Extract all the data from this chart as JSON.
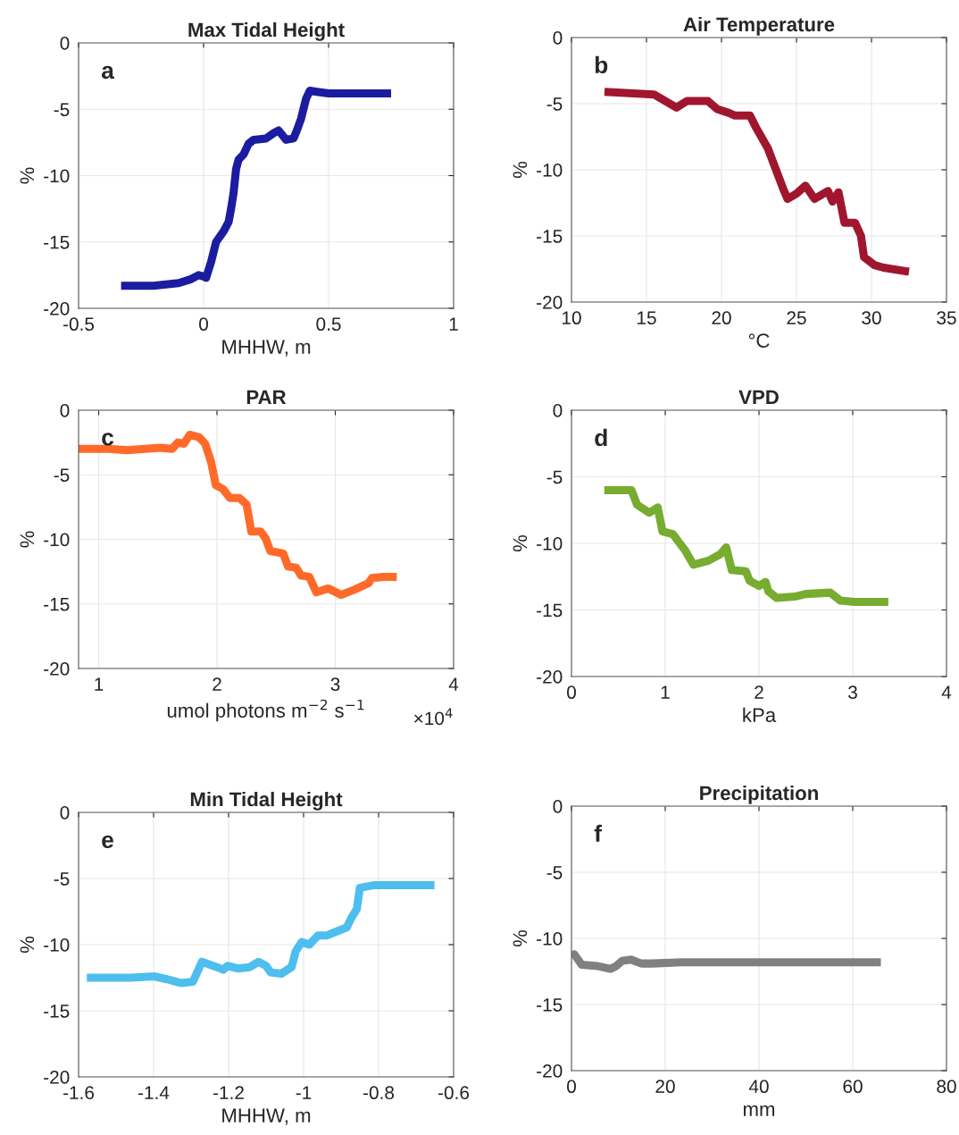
{
  "chart_data": [
    {
      "type": "line",
      "title": "Max Tidal Height",
      "xlabel": "MHHW, m",
      "ylabel": "%",
      "annotations": [
        "a"
      ],
      "grid": true,
      "xlim": [
        -0.5,
        1
      ],
      "xticks": [
        -0.5,
        0,
        0.5,
        1
      ],
      "ylim": [
        -20,
        0
      ],
      "yticks": [
        -20,
        -15,
        -10,
        -5,
        0
      ],
      "series": [
        {
          "color": "#1c1ca0",
          "x": [
            -0.33,
            -0.2,
            -0.15,
            -0.1,
            -0.05,
            -0.02,
            0.0,
            0.01,
            0.03,
            0.05,
            0.08,
            0.1,
            0.11,
            0.12,
            0.13,
            0.14,
            0.16,
            0.18,
            0.2,
            0.25,
            0.28,
            0.3,
            0.33,
            0.36,
            0.375,
            0.39,
            0.41,
            0.425,
            0.46,
            0.5,
            0.75
          ],
          "values": [
            -18.3,
            -18.3,
            -18.2,
            -18.1,
            -17.8,
            -17.5,
            -17.6,
            -17.7,
            -16.5,
            -15.0,
            -14.2,
            -13.5,
            -12.5,
            -11.3,
            -9.5,
            -8.8,
            -8.4,
            -7.6,
            -7.3,
            -7.2,
            -6.8,
            -6.6,
            -7.3,
            -7.2,
            -6.5,
            -5.7,
            -4.2,
            -3.6,
            -3.7,
            -3.8,
            -3.8
          ]
        }
      ]
    },
    {
      "type": "line",
      "title": "Air Temperature",
      "xlabel": "°C",
      "ylabel": "%",
      "annotations": [
        "b"
      ],
      "grid": true,
      "xlim": [
        10,
        35
      ],
      "xticks": [
        10,
        15,
        20,
        25,
        30,
        35
      ],
      "ylim": [
        -20,
        0
      ],
      "yticks": [
        -20,
        -15,
        -10,
        -5,
        0
      ],
      "series": [
        {
          "color": "#a0162e",
          "x": [
            12.2,
            15.5,
            17.0,
            17.7,
            19.1,
            19.7,
            20.5,
            20.9,
            21.9,
            22.3,
            23.1,
            24.1,
            24.4,
            25.0,
            25.6,
            26.2,
            27.1,
            27.4,
            27.8,
            28.2,
            28.9,
            29.3,
            29.5,
            30.2,
            30.8,
            32.5
          ],
          "values": [
            -4.1,
            -4.3,
            -5.3,
            -4.8,
            -4.8,
            -5.4,
            -5.7,
            -5.9,
            -5.9,
            -6.8,
            -8.4,
            -11.4,
            -12.2,
            -11.8,
            -11.2,
            -12.2,
            -11.6,
            -12.4,
            -11.7,
            -14.0,
            -14.0,
            -15.0,
            -16.6,
            -17.2,
            -17.4,
            -17.7
          ]
        }
      ]
    },
    {
      "type": "line",
      "title": "PAR",
      "xlabel": "umol photons m$^{−2}$ s$^{−1}$",
      "ylabel": "%",
      "annotations": [
        "c",
        "×10$^{4}$"
      ],
      "grid": true,
      "xlim": [
        0.83,
        4
      ],
      "xticks": [
        1,
        2,
        3,
        4
      ],
      "ylim": [
        -20,
        0
      ],
      "yticks": [
        -20,
        -15,
        -10,
        -5,
        0
      ],
      "series": [
        {
          "color": "#ff6a2a",
          "x": [
            0.83,
            1.09,
            1.24,
            1.52,
            1.62,
            1.67,
            1.72,
            1.77,
            1.85,
            1.9,
            1.95,
            1.99,
            2.05,
            2.11,
            2.19,
            2.25,
            2.29,
            2.37,
            2.41,
            2.45,
            2.56,
            2.6,
            2.67,
            2.71,
            2.78,
            2.84,
            2.94,
            3.05,
            3.16,
            3.28,
            3.31,
            3.41,
            3.52
          ],
          "values": [
            -3.0,
            -3.0,
            -3.1,
            -2.9,
            -3.0,
            -2.5,
            -2.6,
            -1.9,
            -2.1,
            -2.6,
            -4.0,
            -5.8,
            -6.1,
            -6.8,
            -6.8,
            -7.3,
            -9.4,
            -9.4,
            -9.9,
            -10.9,
            -11.1,
            -12.1,
            -12.2,
            -12.8,
            -12.9,
            -14.1,
            -13.8,
            -14.3,
            -13.9,
            -13.4,
            -13.0,
            -12.9,
            -12.9
          ]
        }
      ]
    },
    {
      "type": "line",
      "title": "VPD",
      "xlabel": "kPa",
      "ylabel": "%",
      "annotations": [
        "d"
      ],
      "grid": true,
      "xlim": [
        0,
        4
      ],
      "xticks": [
        0,
        1,
        2,
        3,
        4
      ],
      "ylim": [
        -20,
        0
      ],
      "yticks": [
        -20,
        -15,
        -10,
        -5,
        0
      ],
      "series": [
        {
          "color": "#77ac30",
          "x": [
            0.35,
            0.64,
            0.7,
            0.83,
            0.92,
            0.97,
            1.08,
            1.21,
            1.3,
            1.46,
            1.59,
            1.65,
            1.71,
            1.86,
            1.9,
            2.0,
            2.07,
            2.1,
            2.19,
            2.38,
            2.5,
            2.76,
            2.87,
            3.02,
            3.38
          ],
          "values": [
            -6.0,
            -6.0,
            -7.1,
            -7.7,
            -7.3,
            -9.1,
            -9.3,
            -10.5,
            -11.6,
            -11.3,
            -10.8,
            -10.3,
            -12.0,
            -12.1,
            -12.8,
            -13.2,
            -12.9,
            -13.6,
            -14.1,
            -14.0,
            -13.8,
            -13.7,
            -14.3,
            -14.4,
            -14.4
          ]
        }
      ]
    },
    {
      "type": "line",
      "title": "Min Tidal Height",
      "xlabel": "MHHW, m",
      "ylabel": "%",
      "annotations": [
        "e"
      ],
      "grid": true,
      "xlim": [
        -1.6,
        -0.6
      ],
      "xticks": [
        -1.6,
        -1.4,
        -1.2,
        -1,
        -0.8,
        -0.6
      ],
      "ylim": [
        -20,
        0
      ],
      "yticks": [
        -20,
        -15,
        -10,
        -5,
        0
      ],
      "series": [
        {
          "color": "#4dbeee",
          "x": [
            -1.578,
            -1.462,
            -1.399,
            -1.367,
            -1.327,
            -1.295,
            -1.271,
            -1.231,
            -1.214,
            -1.203,
            -1.176,
            -1.144,
            -1.12,
            -1.1,
            -1.088,
            -1.06,
            -1.032,
            -1.021,
            -1.005,
            -0.985,
            -0.961,
            -0.937,
            -0.921,
            -0.885,
            -0.873,
            -0.858,
            -0.85,
            -0.811,
            -0.771,
            -0.651
          ],
          "values": [
            -12.5,
            -12.5,
            -12.4,
            -12.6,
            -12.9,
            -12.8,
            -11.3,
            -11.7,
            -11.9,
            -11.6,
            -11.8,
            -11.7,
            -11.3,
            -11.6,
            -12.1,
            -12.2,
            -11.7,
            -10.5,
            -9.8,
            -10.0,
            -9.3,
            -9.3,
            -9.1,
            -8.7,
            -8.0,
            -7.3,
            -5.7,
            -5.5,
            -5.5,
            -5.5
          ]
        }
      ]
    },
    {
      "type": "line",
      "title": "Precipitation",
      "xlabel": "mm",
      "ylabel": "%",
      "annotations": [
        "f"
      ],
      "grid": true,
      "xlim": [
        0,
        80
      ],
      "xticks": [
        0,
        20,
        40,
        60,
        80
      ],
      "ylim": [
        -20,
        0
      ],
      "yticks": [
        -20,
        -15,
        -10,
        -5,
        0
      ],
      "series": [
        {
          "color": "#808080",
          "x": [
            0,
            0.6,
            2.2,
            5.7,
            8.3,
            9.5,
            10.8,
            12.7,
            14.9,
            17.1,
            23.5,
            66.0
          ],
          "values": [
            -11.4,
            -11.2,
            -12.0,
            -12.1,
            -12.3,
            -12.1,
            -11.7,
            -11.6,
            -11.9,
            -11.9,
            -11.8,
            -11.8
          ]
        }
      ]
    }
  ]
}
